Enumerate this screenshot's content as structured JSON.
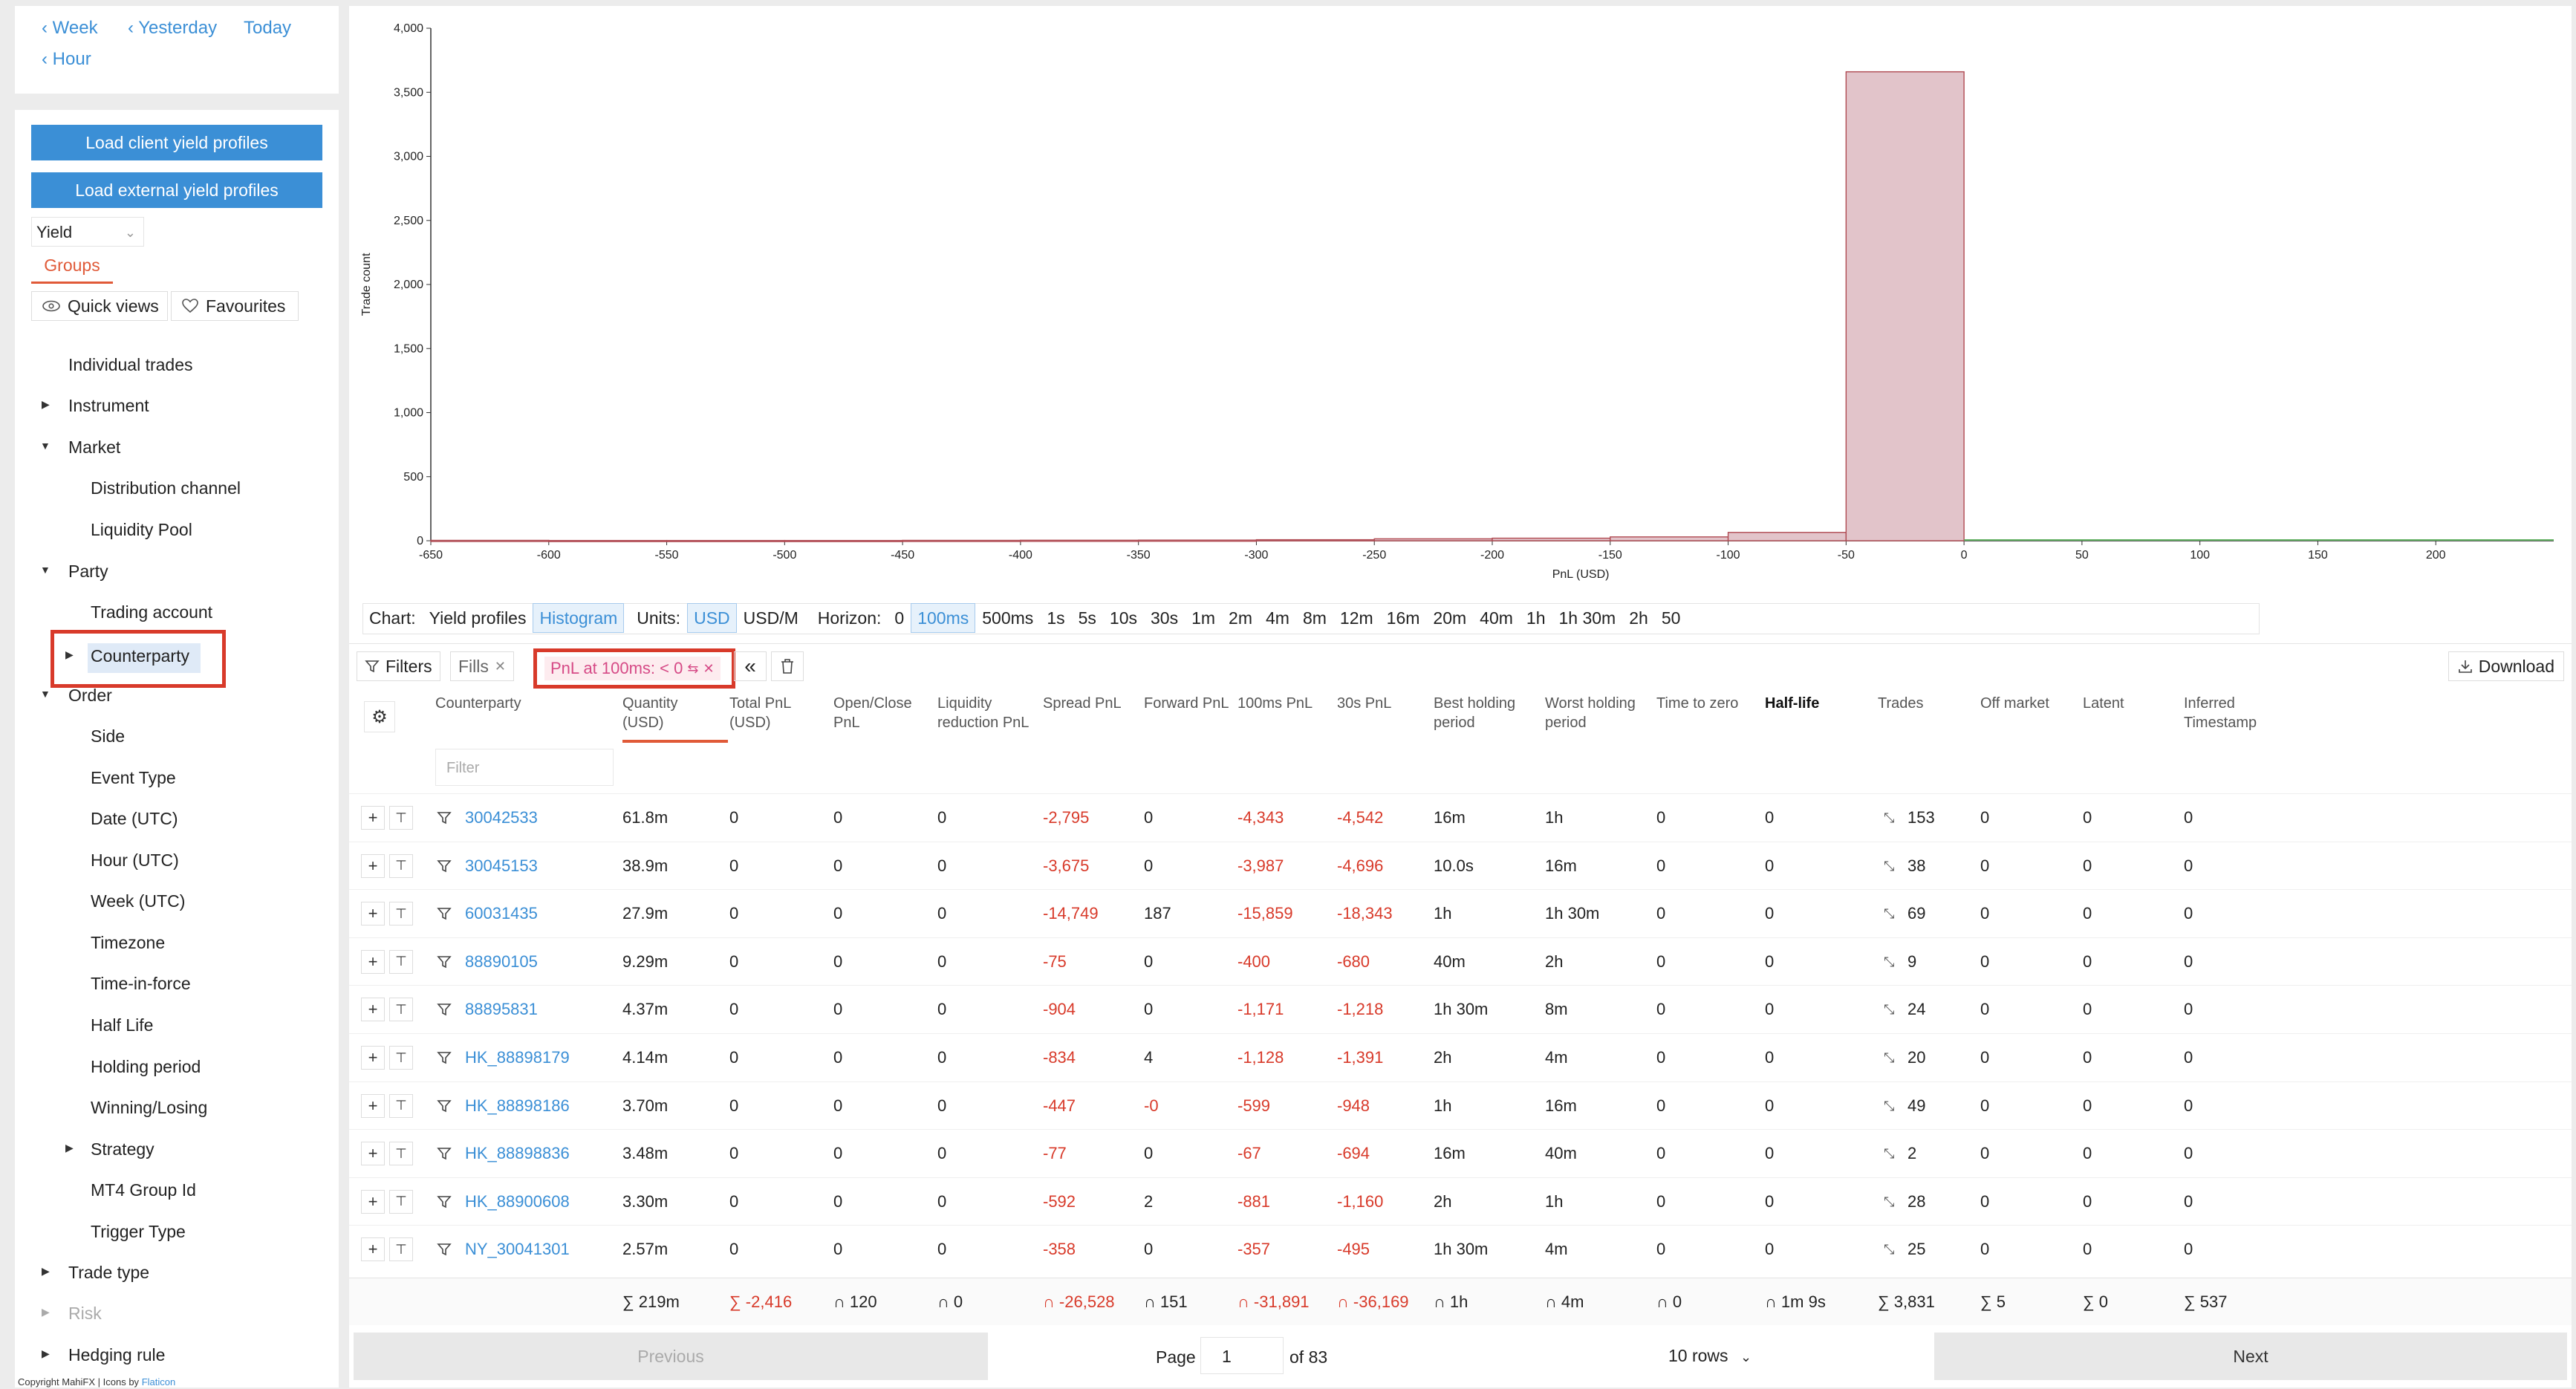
{
  "time_nav": {
    "week": "Week",
    "yesterday": "Yesterday",
    "today": "Today",
    "hour": "Hour"
  },
  "sidebar": {
    "load_client": "Load client yield profiles",
    "load_external": "Load external yield profiles",
    "yield_select": "Yield",
    "groups_tab": "Groups",
    "quick_views": "Quick views",
    "favourites": "Favourites",
    "tree": {
      "individual_trades": "Individual trades",
      "instrument": "Instrument",
      "market": "Market",
      "distribution_channel": "Distribution channel",
      "liquidity_pool": "Liquidity Pool",
      "party": "Party",
      "trading_account": "Trading account",
      "counterparty": "Counterparty",
      "order": "Order",
      "side": "Side",
      "event_type": "Event Type",
      "date_utc": "Date (UTC)",
      "hour_utc": "Hour (UTC)",
      "week_utc": "Week (UTC)",
      "timezone": "Timezone",
      "time_in_force": "Time-in-force",
      "half_life": "Half Life",
      "holding_period": "Holding period",
      "winning_losing": "Winning/Losing",
      "strategy": "Strategy",
      "mt4_group_id": "MT4 Group Id",
      "trigger_type": "Trigger Type",
      "trade_type": "Trade type",
      "risk": "Risk",
      "hedging_rule": "Hedging rule"
    },
    "copyright": "Copyright MahiFX | Icons by",
    "copyright_link": "Flaticon"
  },
  "chart_data": {
    "type": "bar",
    "ylabel": "Trade count",
    "xlabel": "PnL (USD)",
    "xlim": [
      -650,
      250
    ],
    "ylim": [
      0,
      4000
    ],
    "x_ticks": [
      -650,
      -600,
      -550,
      -500,
      -450,
      -400,
      -350,
      -300,
      -250,
      -200,
      -150,
      -100,
      -50,
      0,
      50,
      100,
      150,
      200
    ],
    "y_ticks": [
      0,
      500,
      1000,
      1500,
      2000,
      2500,
      3000,
      3500,
      4000
    ],
    "y_tick_labels": [
      "0",
      "500",
      "1,000",
      "1,500",
      "2,000",
      "2,500",
      "3,000",
      "3,500",
      "4,000"
    ],
    "bins": [
      {
        "x0": -650,
        "x1": -600,
        "count": 3
      },
      {
        "x0": -600,
        "x1": -550,
        "count": 2
      },
      {
        "x0": -550,
        "x1": -500,
        "count": 2
      },
      {
        "x0": -500,
        "x1": -450,
        "count": 2
      },
      {
        "x0": -450,
        "x1": -400,
        "count": 3
      },
      {
        "x0": -400,
        "x1": -350,
        "count": 4
      },
      {
        "x0": -350,
        "x1": -300,
        "count": 5
      },
      {
        "x0": -300,
        "x1": -250,
        "count": 8
      },
      {
        "x0": -250,
        "x1": -200,
        "count": 15
      },
      {
        "x0": -200,
        "x1": -150,
        "count": 20
      },
      {
        "x0": -150,
        "x1": -100,
        "count": 30
      },
      {
        "x0": -100,
        "x1": -50,
        "count": 65
      },
      {
        "x0": -50,
        "x1": 0,
        "count": 3660
      }
    ],
    "bar_color": "#e2c4ca",
    "bar_stroke": "#b04a52",
    "positive_color": "#5fae5f",
    "legend": "none"
  },
  "controls": {
    "chart_label": "Chart:",
    "yield_profiles": "Yield profiles",
    "histogram": "Histogram",
    "units_label": "Units:",
    "usd": "USD",
    "usd_m": "USD/M",
    "horizon_label": "Horizon:",
    "horizons": [
      "0",
      "100ms",
      "500ms",
      "1s",
      "5s",
      "10s",
      "30s",
      "1m",
      "2m",
      "4m",
      "8m",
      "12m",
      "16m",
      "20m",
      "40m",
      "1h",
      "1h 30m",
      "2h",
      "50"
    ]
  },
  "filters": {
    "filters_label": "Filters",
    "fills_chip": "Fills",
    "pnl_chip": "PnL at 100ms: < 0",
    "download": "Download"
  },
  "table": {
    "headers": [
      "Counterparty",
      "Quantity (USD)",
      "Total PnL (USD)",
      "Open/Close PnL",
      "Liquidity reduction PnL",
      "Spread PnL",
      "Forward PnL",
      "100ms PnL",
      "30s PnL",
      "Best holding period",
      "Worst holding period",
      "Time to zero",
      "Half-life",
      "Trades",
      "Off market",
      "Latent",
      "Inferred Timestamp"
    ],
    "filter_placeholder": "Filter",
    "rows": [
      [
        "30042533",
        "61.8m",
        "0",
        "0",
        "0",
        "-2,795",
        "0",
        "-4,343",
        "-4,542",
        "16m",
        "1h",
        "0",
        "0",
        "153",
        "0",
        "0",
        "0"
      ],
      [
        "30045153",
        "38.9m",
        "0",
        "0",
        "0",
        "-3,675",
        "0",
        "-3,987",
        "-4,696",
        "10.0s",
        "16m",
        "0",
        "0",
        "38",
        "0",
        "0",
        "0"
      ],
      [
        "60031435",
        "27.9m",
        "0",
        "0",
        "0",
        "-14,749",
        "187",
        "-15,859",
        "-18,343",
        "1h",
        "1h 30m",
        "0",
        "0",
        "69",
        "0",
        "0",
        "0"
      ],
      [
        "88890105",
        "9.29m",
        "0",
        "0",
        "0",
        "-75",
        "0",
        "-400",
        "-680",
        "40m",
        "2h",
        "0",
        "0",
        "9",
        "0",
        "0",
        "0"
      ],
      [
        "88895831",
        "4.37m",
        "0",
        "0",
        "0",
        "-904",
        "0",
        "-1,171",
        "-1,218",
        "1h 30m",
        "8m",
        "0",
        "0",
        "24",
        "0",
        "0",
        "0"
      ],
      [
        "HK_88898179",
        "4.14m",
        "0",
        "0",
        "0",
        "-834",
        "4",
        "-1,128",
        "-1,391",
        "2h",
        "4m",
        "0",
        "0",
        "20",
        "0",
        "0",
        "0"
      ],
      [
        "HK_88898186",
        "3.70m",
        "0",
        "0",
        "0",
        "-447",
        "-0",
        "-599",
        "-948",
        "1h",
        "16m",
        "0",
        "0",
        "49",
        "0",
        "0",
        "0"
      ],
      [
        "HK_88898836",
        "3.48m",
        "0",
        "0",
        "0",
        "-77",
        "0",
        "-67",
        "-694",
        "16m",
        "40m",
        "0",
        "0",
        "2",
        "0",
        "0",
        "0"
      ],
      [
        "HK_88900608",
        "3.30m",
        "0",
        "0",
        "0",
        "-592",
        "2",
        "-881",
        "-1,160",
        "2h",
        "1h",
        "0",
        "0",
        "28",
        "0",
        "0",
        "0"
      ],
      [
        "NY_30041301",
        "2.57m",
        "0",
        "0",
        "0",
        "-358",
        "0",
        "-357",
        "-495",
        "1h 30m",
        "4m",
        "0",
        "0",
        "25",
        "0",
        "0",
        "0"
      ]
    ],
    "footer": [
      "∑ 219m",
      "∑ -2,416",
      "∩ 120",
      "∩ 0",
      "∩ -26,528",
      "∩ 151",
      "∩ -31,891",
      "∩ -36,169",
      "∩ 1h",
      "∩ 4m",
      "∩ 0",
      "∩ 1m 9s",
      "∑ 3,831",
      "∑ 5",
      "∑ 0",
      "∑ 537"
    ]
  },
  "pager": {
    "previous": "Previous",
    "page_label": "Page",
    "page_value": "1",
    "of_label": "of 83",
    "rows_select": "10 rows",
    "next": "Next"
  }
}
